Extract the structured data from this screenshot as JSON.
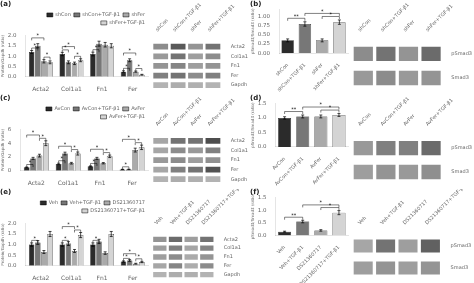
{
  "chart_data": [
    {
      "type": "bar",
      "title": "(a)",
      "categories": [
        "Acta2",
        "Col1a1",
        "Fn1",
        "Fer"
      ],
      "series": [
        {
          "name": "shCon",
          "color": "#2b2b2b",
          "values": [
            1.2,
            1.1,
            1.1,
            0.25
          ],
          "errors": [
            0.07,
            0.08,
            0.09,
            0.04
          ]
        },
        {
          "name": "shCon+TGF-β1",
          "color": "#777777",
          "values": [
            1.5,
            0.7,
            1.6,
            0.8
          ],
          "errors": [
            0.1,
            0.07,
            0.12,
            0.07
          ]
        },
        {
          "name": "shFer",
          "color": "#aaaaaa",
          "values": [
            0.75,
            0.65,
            1.55,
            0.25
          ],
          "errors": [
            0.08,
            0.06,
            0.11,
            0.03
          ]
        },
        {
          "name": "shFer+TGF-β1",
          "color": "#d4d4d4",
          "values": [
            0.7,
            0.8,
            1.5,
            0.1
          ],
          "errors": [
            0.07,
            0.07,
            0.1,
            0.02
          ]
        }
      ],
      "ylabel": "Protein/Gapdh (ratio)",
      "ylim": [
        0,
        2.0
      ],
      "yticks": [
        {
          "value": 0.0,
          "label": "0.0"
        },
        0.5,
        {
          "value": 1.0,
          "label": "1.0"
        },
        1.5,
        {
          "value": 2.0,
          "label": "2.0"
        }
      ],
      "grid": false,
      "legend": "top",
      "annotations": [
        {
          "text": "*",
          "category": "Acta2",
          "between": [
            "shCon",
            "shCon+TGF-β1"
          ],
          "y": 1.39
        },
        {
          "text": "*",
          "category": "Acta2",
          "between": [
            "shFer",
            "shFer+TGF-β1"
          ],
          "y": 0.95
        },
        {
          "text": "*",
          "category": "Acta2",
          "between": [
            "shCon",
            "shFer"
          ],
          "y": 1.88
        },
        {
          "text": "*",
          "category": "Col1a1",
          "between": [
            "shCon",
            "shCon+TGF-β1"
          ],
          "y": 1.3
        },
        {
          "text": "*",
          "category": "Col1a1",
          "between": [
            "shFer",
            "shFer+TGF-β1"
          ],
          "y": 0.99
        },
        {
          "text": "*",
          "category": "Col1a1",
          "between": [
            "shCon",
            "shFer"
          ],
          "y": 1.46
        },
        {
          "text": "*",
          "category": "Fn1",
          "between": [
            "shCon",
            "shCon+TGF-β1"
          ],
          "y": 1.31
        },
        {
          "text": "*",
          "category": "Fer",
          "between": [
            "shCon",
            "shCon+TGF-β1"
          ],
          "y": 0.41
        },
        {
          "text": "*",
          "category": "Fer",
          "between": [
            "shFer",
            "shFer+TGF-β1"
          ],
          "y": 0.4
        },
        {
          "text": "*",
          "category": "Fer",
          "between": [
            "shCon",
            "shFer"
          ],
          "y": 1.15
        }
      ]
    },
    {
      "type": "heatmap",
      "categories": [
        "shCon",
        "shCon+TGF-β1",
        "shFer",
        "shFer+TGF-β1"
      ],
      "rows": [
        "Acta2",
        "Col1a1",
        "Fn1",
        "Fer",
        "Gapdh"
      ],
      "cells": [
        [
          0.45,
          0.65,
          0.42,
          0.55
        ],
        [
          0.4,
          0.55,
          0.38,
          0.45
        ],
        [
          0.42,
          0.48,
          0.38,
          0.42
        ],
        [
          0.5,
          0.55,
          0.45,
          0.5
        ],
        [
          0.3,
          0.32,
          0.31,
          0.3
        ]
      ]
    },
    {
      "type": "bar",
      "title": "(b)",
      "categories": [
        "shCon",
        "shCon+TGF-β1",
        "shFer",
        "shFer+TGF-β1"
      ],
      "values": [
        0.35,
        0.8,
        0.35,
        0.85
      ],
      "errors": [
        0.04,
        0.06,
        0.04,
        0.06
      ],
      "colors": [
        "#2b2b2b",
        "#777777",
        "#aaaaaa",
        "#d4d4d4"
      ],
      "ylabel": "pSmad3/Smad3 (ratio)",
      "ylim": [
        0,
        1.2
      ],
      "yticks": [
        {
          "value": 0.0,
          "label": "0.00"
        },
        0.25,
        {
          "value": 0.5,
          "label": "0.50"
        },
        0.75,
        {
          "value": 1.0,
          "label": "1.00"
        }
      ],
      "grid": false,
      "annotations": [
        {
          "text": "**",
          "between": [
            "shCon",
            "shCon+TGF-β1"
          ],
          "y": 0.956
        },
        {
          "text": "*",
          "between": [
            "shCon+TGF-β1",
            "shFer+TGF-β1"
          ],
          "y": 1.09
        },
        {
          "text": "*",
          "between": [
            "shFer",
            "shFer+TGF-β1"
          ],
          "y": 1.006
        }
      ]
    },
    {
      "type": "heatmap",
      "categories": [
        "shCon",
        "shCon+TGF-β1",
        "shFer",
        "shFer+TGF-β1"
      ],
      "rows": [
        "pSmad3",
        "Smad3"
      ],
      "cells": [
        [
          0.45,
          0.55,
          0.42,
          0.58
        ],
        [
          0.4,
          0.45,
          0.4,
          0.42
        ]
      ]
    },
    {
      "type": "bar",
      "title": "(c)",
      "categories": [
        "Acta2",
        "Col1a1",
        "Fn1",
        "Fer"
      ],
      "series": [
        {
          "name": "AvCon",
          "color": "#2b2b2b",
          "values": [
            0.5,
            1.0,
            0.65,
            0.2
          ],
          "errors": [
            0.05,
            0.1,
            0.06,
            0.02
          ]
        },
        {
          "name": "AvCon+TGF-β1",
          "color": "#777777",
          "values": [
            1.8,
            2.5,
            1.8,
            0.2
          ],
          "errors": [
            0.15,
            0.2,
            0.15,
            0.03
          ]
        },
        {
          "name": "AvFer",
          "color": "#aaaaaa",
          "values": [
            2.2,
            1.1,
            1.1,
            3.0
          ],
          "errors": [
            0.2,
            0.12,
            0.1,
            0.28
          ]
        },
        {
          "name": "AvFer+TGF-β1",
          "color": "#d4d4d4",
          "values": [
            4.0,
            2.5,
            2.1,
            3.4
          ],
          "errors": [
            0.35,
            0.22,
            0.18,
            0.32
          ]
        }
      ],
      "ylabel": "Protein/Gapdh (ratio)",
      "ylim": [
        0,
        6
      ],
      "yticks": [
        0,
        2,
        4,
        6
      ],
      "grid": false,
      "legend": "top",
      "annotations": [
        {
          "text": "*",
          "category": "Acta2",
          "between": [
            "AvCon",
            "AvCon+TGF-β1"
          ],
          "y": 0.91
        },
        {
          "text": "*",
          "category": "Acta2",
          "between": [
            "AvFer",
            "AvFer+TGF-β1"
          ],
          "y": 4.71
        },
        {
          "text": "*",
          "category": "Acta2",
          "between": [
            "AvCon",
            "AvFer"
          ],
          "y": 5.19
        },
        {
          "text": "*",
          "category": "Col1a1",
          "between": [
            "AvCon",
            "AvCon+TGF-β1"
          ],
          "y": 1.46
        },
        {
          "text": "*",
          "category": "Col1a1",
          "between": [
            "AvFer",
            "AvFer+TGF-β1"
          ],
          "y": 3.08
        },
        {
          "text": "*",
          "category": "Col1a1",
          "between": [
            "AvCon",
            "AvFer"
          ],
          "y": 3.56
        },
        {
          "text": "*",
          "category": "Fn1",
          "between": [
            "AvCon",
            "AvCon+TGF-β1"
          ],
          "y": 1.07
        },
        {
          "text": "*",
          "category": "Fn1",
          "between": [
            "AvFer",
            "AvFer+TGF-β1"
          ],
          "y": 2.64
        },
        {
          "text": "*",
          "category": "Fn1",
          "between": [
            "AvCon",
            "AvFer"
          ],
          "y": 3.12
        },
        {
          "text": "*",
          "category": "Fer",
          "between": [
            "AvCon",
            "AvCon+TGF-β1"
          ],
          "y": 0.58
        },
        {
          "text": "*",
          "category": "Fer",
          "between": [
            "AvFer",
            "AvFer+TGF-β1"
          ],
          "y": 4.08
        },
        {
          "text": "*",
          "category": "Fer",
          "between": [
            "AvCon",
            "AvFer"
          ],
          "y": 4.56
        }
      ]
    },
    {
      "type": "heatmap",
      "categories": [
        "AvCon",
        "AvCon+TGF-β1",
        "AvFer",
        "AvFer+TGF-β1"
      ],
      "rows": [
        "Acta2",
        "Col1a1",
        "Fn1",
        "Fer",
        "Gapdh"
      ],
      "cells": [
        [
          0.35,
          0.55,
          0.55,
          0.7
        ],
        [
          0.35,
          0.45,
          0.4,
          0.5
        ],
        [
          0.4,
          0.45,
          0.38,
          0.43
        ],
        [
          0.35,
          0.5,
          0.55,
          0.68
        ],
        [
          0.3,
          0.32,
          0.31,
          0.3
        ]
      ]
    },
    {
      "type": "bar",
      "title": "(d)",
      "categories": [
        "AvCon",
        "AvCon+TGF-β1",
        "AvFer",
        "AvFer+TGF-β1"
      ],
      "values": [
        1.0,
        1.05,
        1.05,
        1.1
      ],
      "errors": [
        0.04,
        0.05,
        0.05,
        0.05
      ],
      "colors": [
        "#2b2b2b",
        "#777777",
        "#aaaaaa",
        "#d4d4d4"
      ],
      "ylabel": "pSmad3/Smad3 (ratio)",
      "ylim": [
        0,
        1.5
      ],
      "yticks": [
        {
          "value": 0.0,
          "label": "0.0"
        },
        0.5,
        {
          "value": 1.0,
          "label": "1.0"
        },
        1.5
      ],
      "grid": false,
      "annotations": [
        {
          "text": "**",
          "between": [
            "AvCon",
            "AvCon+TGF-β1"
          ],
          "y": 1.22
        },
        {
          "text": "*",
          "between": [
            "AvCon+TGF-β1",
            "AvFer+TGF-β1"
          ],
          "y": 1.375
        },
        {
          "text": "*",
          "between": [
            "AvFer",
            "AvFer+TGF-β1"
          ],
          "y": 1.27
        }
      ]
    },
    {
      "type": "heatmap",
      "categories": [
        "AvCon",
        "AvCon+TGF-β1",
        "AvFer",
        "AvFer+TGF-β1"
      ],
      "rows": [
        "pSmad3",
        "Smad3"
      ],
      "cells": [
        [
          0.4,
          0.5,
          0.5,
          0.58
        ],
        [
          0.38,
          0.42,
          0.4,
          0.44
        ]
      ]
    },
    {
      "type": "bar",
      "title": "(e)",
      "categories": [
        "Acta2",
        "Col1a1",
        "Fn1",
        "Fer"
      ],
      "series": [
        {
          "name": "Veh",
          "color": "#2b2b2b",
          "values": [
            1.0,
            1.0,
            1.0,
            0.2
          ],
          "errors": [
            0.08,
            0.08,
            0.08,
            0.03
          ]
        },
        {
          "name": "Veh+TGF-β1",
          "color": "#777777",
          "values": [
            1.1,
            1.05,
            1.15,
            0.25
          ],
          "errors": [
            0.09,
            0.09,
            0.1,
            0.04
          ]
        },
        {
          "name": "DS21360717",
          "color": "#aaaaaa",
          "values": [
            0.65,
            0.7,
            0.6,
            0.1
          ],
          "errors": [
            0.07,
            0.07,
            0.06,
            0.02
          ]
        },
        {
          "name": "DS21360717+TGF-β1",
          "color": "#d4d4d4",
          "values": [
            1.5,
            1.45,
            1.5,
            0.18
          ],
          "errors": [
            0.12,
            0.12,
            0.12,
            0.03
          ]
        }
      ],
      "ylabel": "Protein/Gapdh (ratio)",
      "ylim": [
        0,
        2.0
      ],
      "yticks": [
        {
          "value": 0.0,
          "label": "0.0"
        },
        0.5,
        {
          "value": 1.0,
          "label": "1.0"
        },
        1.5,
        {
          "value": 2.0,
          "label": "2.0"
        }
      ],
      "grid": false,
      "legend": "top",
      "annotations": [
        {
          "text": "*",
          "category": "Acta2",
          "between": [
            "Veh",
            "Veh+TGF-β1"
          ],
          "y": 1.2
        },
        {
          "text": "*",
          "category": "Col1a1",
          "between": [
            "Veh",
            "Veh+TGF-β1"
          ],
          "y": 1.2
        },
        {
          "text": "*",
          "category": "Col1a1",
          "between": [
            "DS21360717",
            "DS21360717+TGF-β1"
          ],
          "y": 1.69
        },
        {
          "text": "*",
          "category": "Col1a1",
          "between": [
            "Veh",
            "DS21360717"
          ],
          "y": 1.85
        },
        {
          "text": "*",
          "category": "Fn1",
          "between": [
            "Veh",
            "Veh+TGF-β1"
          ],
          "y": 1.2
        },
        {
          "text": "*",
          "category": "Fer",
          "between": [
            "Veh",
            "Veh+TGF-β1"
          ],
          "y": 0.35
        },
        {
          "text": "*",
          "category": "Fer",
          "between": [
            "DS21360717",
            "DS21360717+TGF-β1"
          ],
          "y": 0.33
        },
        {
          "text": "*",
          "category": "Fer",
          "between": [
            "Veh",
            "DS21360717"
          ],
          "y": 0.57
        }
      ]
    },
    {
      "type": "heatmap",
      "categories": [
        "Veh",
        "Veh+TGF-β1",
        "DS21360717",
        "DS21360717+TGF-β1"
      ],
      "rows": [
        "Acta2",
        "Col1a1",
        "Fn1",
        "Fer",
        "Gapdh"
      ],
      "cells": [
        [
          0.42,
          0.58,
          0.38,
          0.55
        ],
        [
          0.38,
          0.5,
          0.35,
          0.48
        ],
        [
          0.38,
          0.45,
          0.33,
          0.42
        ],
        [
          0.35,
          0.48,
          0.32,
          0.45
        ],
        [
          0.3,
          0.32,
          0.31,
          0.3
        ]
      ]
    },
    {
      "type": "bar",
      "title": "(f)",
      "categories": [
        "Veh",
        "Veh+TGF-β1",
        "DS21360717",
        "DS21360717+TGF-β1"
      ],
      "values": [
        0.15,
        0.55,
        0.2,
        0.9
      ],
      "errors": [
        0.02,
        0.05,
        0.03,
        0.08
      ],
      "colors": [
        "#2b2b2b",
        "#777777",
        "#aaaaaa",
        "#d4d4d4"
      ],
      "ylabel": "pSmad3/Smad3 (ratio)",
      "ylim": [
        0,
        1.5
      ],
      "yticks": [
        {
          "value": 0.0,
          "label": "0.0"
        },
        0.5,
        {
          "value": 1.0,
          "label": "1.0"
        },
        1.5
      ],
      "grid": false,
      "annotations": [
        {
          "text": "**",
          "between": [
            "Veh",
            "Veh+TGF-β1"
          ],
          "y": 0.72
        },
        {
          "text": "*",
          "between": [
            "Veh+TGF-β1",
            "DS21360717+TGF-β1"
          ],
          "y": 1.205
        },
        {
          "text": "*",
          "between": [
            "DS21360717",
            "DS21360717+TGF-β1"
          ],
          "y": 1.1
        }
      ]
    },
    {
      "type": "heatmap",
      "categories": [
        "Veh",
        "Veh+TGF-β1",
        "DS21360717",
        "DS21360717+TGF-β1"
      ],
      "rows": [
        "pSmad3",
        "Smad3"
      ],
      "cells": [
        [
          0.35,
          0.55,
          0.38,
          0.62
        ],
        [
          0.38,
          0.42,
          0.38,
          0.42
        ]
      ]
    }
  ]
}
